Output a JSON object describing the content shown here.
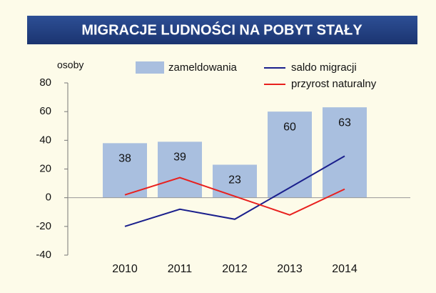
{
  "chart_data": {
    "type": "bar",
    "title": "MIGRACJE LUDNOŚCI NA POBYT STAŁY",
    "y_label": "osoby",
    "categories": [
      "2010",
      "2011",
      "2012",
      "2013",
      "2014"
    ],
    "series": [
      {
        "name": "zameldowania",
        "type": "bar",
        "color": "#a9bfdf",
        "values": [
          38,
          39,
          23,
          60,
          63
        ]
      },
      {
        "name": "saldo migracji",
        "type": "line",
        "color": "#1a1f8c",
        "values": [
          -20,
          -8,
          -15,
          7,
          29
        ]
      },
      {
        "name": "przyrost naturalny",
        "type": "line",
        "color": "#e8201e",
        "values": [
          2,
          14,
          1,
          -12,
          6
        ]
      }
    ],
    "ylim": [
      -40,
      80
    ],
    "yticks": [
      -40,
      -20,
      0,
      20,
      40,
      60,
      80
    ],
    "grid": false
  }
}
